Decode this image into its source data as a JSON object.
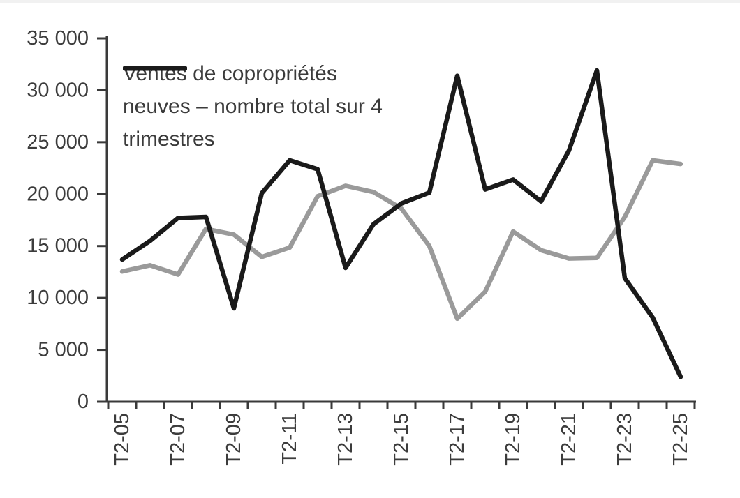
{
  "chart_data": {
    "type": "line",
    "title": "",
    "x_axis": {
      "tick_labels": [
        "T2-05",
        "T2-07",
        "T2-09",
        "T2-11",
        "T2-13",
        "T2-15",
        "T2-17",
        "T2-19",
        "T2-21",
        "T2-23",
        "T2-25"
      ],
      "years_per_label": 2,
      "points_per_series": 21
    },
    "y_axis": {
      "min": 0,
      "max": 35000,
      "step": 5000,
      "tick_labels": [
        "35 000",
        "30 000",
        "25 000",
        "20 000",
        "15 000",
        "10 000",
        "5 000",
        "0"
      ]
    },
    "grid": "off",
    "legend_position": "top-left-inside",
    "series": [
      {
        "name": "Ventes de copropriétés neuves – nombre total sur 4 trimestres",
        "color": "#9a9a9a",
        "in_legend": false,
        "values": [
          12550,
          13150,
          12250,
          16650,
          16100,
          13950,
          14850,
          19800,
          20800,
          20200,
          18600,
          15000,
          8000,
          10600,
          16400,
          14600,
          13800,
          13850,
          17800,
          23250,
          22900
        ]
      },
      {
        "name": "Ventes de copropriétés neuves – nombre total sur 4 trimestres",
        "color": "#1a1a1a",
        "in_legend": true,
        "values": [
          13700,
          15500,
          17700,
          17800,
          9000,
          20100,
          23250,
          22400,
          12900,
          17100,
          19100,
          20150,
          31400,
          20450,
          21400,
          19300,
          24200,
          31900,
          11900,
          8100,
          2400
        ]
      }
    ]
  },
  "legend": {
    "label": "Ventes de copropriétés neuves – nombre total sur 4 trimestres"
  },
  "colors": {
    "axis": "#3a3a3a",
    "label_text": "#3c3c3c",
    "series_black": "#1a1a1a",
    "series_gray": "#9a9a9a",
    "top_strip": "#f1f1f1",
    "top_strip_border": "#dcdcdc"
  }
}
